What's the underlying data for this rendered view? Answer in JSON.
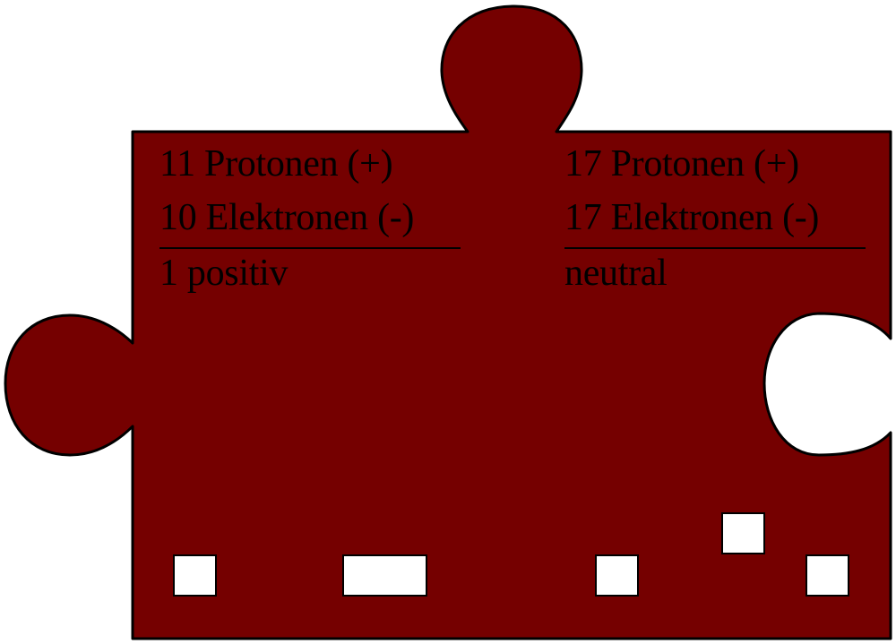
{
  "colors": {
    "piece_fill": "#750000",
    "outline": "#000000",
    "hole_fill": "#ffffff"
  },
  "left_atom": {
    "protons": "11 Protonen (+)",
    "electrons": "10 Elektronen (-)",
    "charge": "1 positiv"
  },
  "right_atom": {
    "protons": "17 Protonen (+)",
    "electrons": "17 Elektronen (-)",
    "charge": "neutral"
  }
}
